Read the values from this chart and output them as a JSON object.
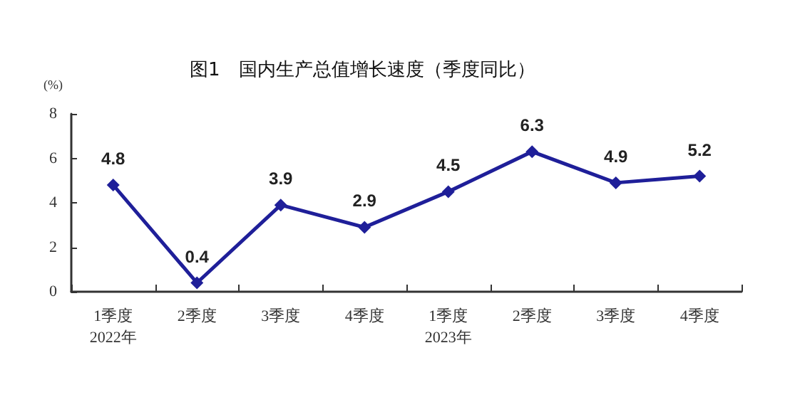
{
  "chart_data": {
    "type": "line",
    "title": "图1　国内生产总值增长速度（季度同比）",
    "ylabel": "(%)",
    "categories": [
      "1季度\n2022年",
      "2季度",
      "3季度",
      "4季度",
      "1季度\n2023年",
      "2季度",
      "3季度",
      "4季度"
    ],
    "values": [
      4.8,
      0.4,
      3.9,
      2.9,
      4.5,
      6.3,
      4.9,
      5.2
    ],
    "color": "#1f1f99",
    "ylim": [
      0,
      8
    ],
    "yticks": [
      0,
      2,
      4,
      6,
      8
    ],
    "grid": false,
    "marker": "diamond",
    "line_style": "solid",
    "data_labels": true
  }
}
